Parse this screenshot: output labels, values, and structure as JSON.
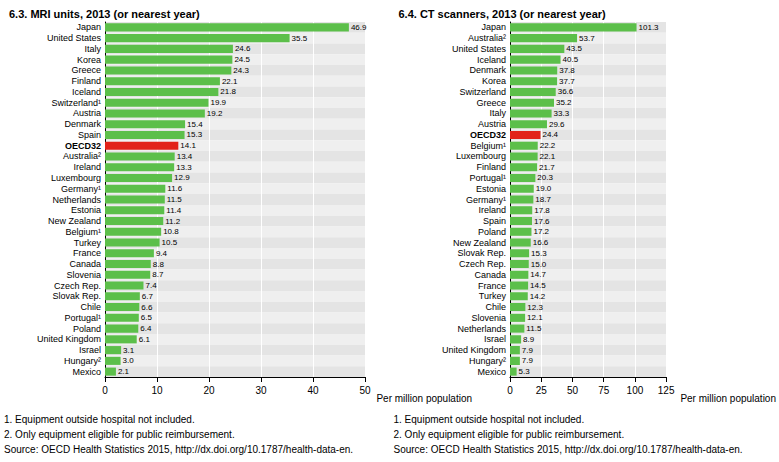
{
  "chart_data": [
    {
      "type": "bar",
      "title": "6.3. MRI units, 2013 (or nearest year)",
      "orientation": "horizontal",
      "x_label": "Per million population",
      "categories": [
        "Japan",
        "United States",
        "Italy",
        "Korea",
        "Greece",
        "Finland",
        "Iceland",
        "Switzerland¹",
        "Austria",
        "Denmark",
        "Spain",
        "OECD32",
        "Australia²",
        "Ireland",
        "Luxembourg",
        "Germany¹",
        "Netherlands",
        "Estonia",
        "New Zealand",
        "Belgium¹",
        "Turkey",
        "France",
        "Canada",
        "Slovenia",
        "Czech Rep.",
        "Slovak Rep.",
        "Chile",
        "Portugal¹",
        "Poland",
        "United Kingdom",
        "Israel",
        "Hungary²",
        "Mexico"
      ],
      "values": [
        46.9,
        35.5,
        24.6,
        24.5,
        24.3,
        22.1,
        21.8,
        19.9,
        19.2,
        15.4,
        15.3,
        14.1,
        13.4,
        13.3,
        12.9,
        11.6,
        11.5,
        11.4,
        11.2,
        10.8,
        10.5,
        9.4,
        8.8,
        8.7,
        7.4,
        6.7,
        6.6,
        6.5,
        6.4,
        6.1,
        3.1,
        3.0,
        2.1
      ],
      "value_labels": [
        "46.9",
        "35.5",
        "24.6",
        "24.5",
        "24.3",
        "22.1",
        "21.8",
        "19.9",
        "19.2",
        "15.4",
        "15.3",
        "14.1",
        "13.4",
        "13.3",
        "12.9",
        "11.6",
        "11.5",
        "11.4",
        "11.2",
        "10.8",
        "10.5",
        "9.4",
        "8.8",
        "8.7",
        "7.4",
        "6.7",
        "6.6",
        "6.5",
        "6.4",
        "6.1",
        "3.1",
        "3.0",
        "2.1"
      ],
      "colors": [
        "#5cbf4a",
        "#5cbf4a",
        "#5cbf4a",
        "#5cbf4a",
        "#5cbf4a",
        "#5cbf4a",
        "#5cbf4a",
        "#5cbf4a",
        "#5cbf4a",
        "#5cbf4a",
        "#5cbf4a",
        "#e2231a",
        "#5cbf4a",
        "#5cbf4a",
        "#5cbf4a",
        "#5cbf4a",
        "#5cbf4a",
        "#5cbf4a",
        "#5cbf4a",
        "#5cbf4a",
        "#5cbf4a",
        "#5cbf4a",
        "#5cbf4a",
        "#5cbf4a",
        "#5cbf4a",
        "#5cbf4a",
        "#5cbf4a",
        "#5cbf4a",
        "#5cbf4a",
        "#5cbf4a",
        "#5cbf4a",
        "#5cbf4a",
        "#5cbf4a"
      ],
      "xlim": [
        0,
        50
      ],
      "xticks": [
        0,
        10,
        20,
        30,
        40,
        50
      ],
      "grid": true,
      "data_labels": true,
      "annotations": [
        "1. Equipment outside hospital not included.",
        "2. Only equipment eligible for public reimbursement.",
        "Source: OECD Health Statistics 2015, http://dx.doi.org/10.1787/health-data-en."
      ]
    },
    {
      "type": "bar",
      "title": "6.4. CT scanners, 2013 (or nearest year)",
      "orientation": "horizontal",
      "x_label": "Per million population",
      "categories": [
        "Japan",
        "Australia²",
        "United States",
        "Iceland",
        "Denmark",
        "Korea",
        "Switzerland",
        "Greece",
        "Italy",
        "Austria",
        "OECD32",
        "Belgium¹",
        "Luxembourg",
        "Finland",
        "Portugal¹",
        "Estonia",
        "Germany¹",
        "Ireland",
        "Spain",
        "Poland",
        "New Zealand",
        "Slovak Rep.",
        "Czech Rep.",
        "Canada",
        "France",
        "Turkey",
        "Chile",
        "Slovenia",
        "Netherlands",
        "Israel",
        "United Kingdom",
        "Hungary²",
        "Mexico"
      ],
      "values": [
        101.3,
        53.7,
        43.5,
        40.5,
        37.8,
        37.7,
        36.6,
        35.2,
        33.3,
        29.6,
        24.4,
        22.2,
        22.1,
        21.7,
        20.3,
        19.0,
        18.7,
        17.8,
        17.6,
        17.2,
        16.6,
        15.3,
        15.0,
        14.7,
        14.5,
        14.2,
        12.3,
        12.1,
        11.5,
        8.9,
        7.9,
        7.9,
        5.3
      ],
      "value_labels": [
        "101.3",
        "53.7",
        "43.5",
        "40.5",
        "37.8",
        "37.7",
        "36.6",
        "35.2",
        "33.3",
        "29.6",
        "24.4",
        "22.2",
        "22.1",
        "21.7",
        "20.3",
        "19.0",
        "18.7",
        "17.8",
        "17.6",
        "17.2",
        "16.6",
        "15.3",
        "15.0",
        "14.7",
        "14.5",
        "14.2",
        "12.3",
        "12.1",
        "11.5",
        "8.9",
        "7.9",
        "7.9",
        "5.3"
      ],
      "colors": [
        "#5cbf4a",
        "#5cbf4a",
        "#5cbf4a",
        "#5cbf4a",
        "#5cbf4a",
        "#5cbf4a",
        "#5cbf4a",
        "#5cbf4a",
        "#5cbf4a",
        "#5cbf4a",
        "#e2231a",
        "#5cbf4a",
        "#5cbf4a",
        "#5cbf4a",
        "#5cbf4a",
        "#5cbf4a",
        "#5cbf4a",
        "#5cbf4a",
        "#5cbf4a",
        "#5cbf4a",
        "#5cbf4a",
        "#5cbf4a",
        "#5cbf4a",
        "#5cbf4a",
        "#5cbf4a",
        "#5cbf4a",
        "#5cbf4a",
        "#5cbf4a",
        "#5cbf4a",
        "#5cbf4a",
        "#5cbf4a",
        "#5cbf4a",
        "#5cbf4a"
      ],
      "xlim": [
        0,
        125
      ],
      "xticks": [
        0,
        25,
        50,
        75,
        100,
        125
      ],
      "grid": true,
      "data_labels": true,
      "annotations": [
        "1. Equipment outside hospital not included.",
        "2. Only equipment eligible for public reimbursement.",
        "Source: OECD Health Statistics 2015, http://dx.doi.org/10.1787/health-data-en."
      ]
    }
  ]
}
